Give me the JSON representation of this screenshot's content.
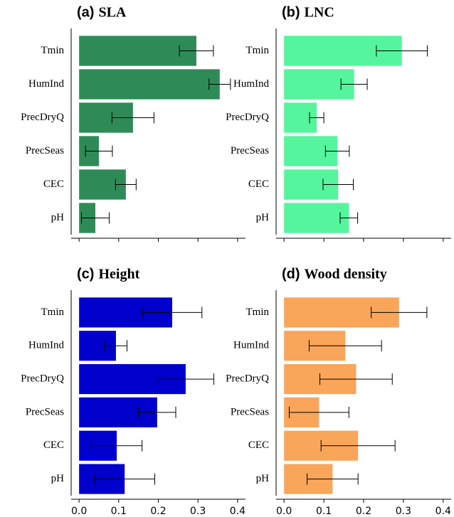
{
  "chart_data": [
    {
      "type": "bar",
      "orientation": "horizontal",
      "panel_label": "(a)",
      "title": "SLA",
      "categories": [
        "Tmin",
        "HumInd",
        "PrecDryQ",
        "PrecSeas",
        "CEC",
        "pH"
      ],
      "values": [
        0.296,
        0.355,
        0.136,
        0.05,
        0.118,
        0.041
      ],
      "errors": [
        0.043,
        0.027,
        0.053,
        0.034,
        0.026,
        0.035
      ],
      "color": "#2e8b57",
      "xlim": [
        -0.02,
        0.42
      ],
      "xticks": [
        0,
        0.1,
        0.2,
        0.3,
        0.4
      ],
      "show_xtick_labels": false
    },
    {
      "type": "bar",
      "orientation": "horizontal",
      "panel_label": "(b)",
      "title": "LNC",
      "categories": [
        "Tmin",
        "HumInd",
        "PrecDryQ",
        "PrecSeas",
        "CEC",
        "pH"
      ],
      "values": [
        0.296,
        0.176,
        0.082,
        0.134,
        0.136,
        0.163
      ],
      "errors": [
        0.064,
        0.033,
        0.018,
        0.03,
        0.038,
        0.022
      ],
      "color": "#54f59c",
      "xlim": [
        -0.02,
        0.42
      ],
      "xticks": [
        0,
        0.1,
        0.2,
        0.3,
        0.4
      ],
      "show_xtick_labels": false
    },
    {
      "type": "bar",
      "orientation": "horizontal",
      "panel_label": "(c)",
      "title": "Height",
      "categories": [
        "Tmin",
        "HumInd",
        "PrecDryQ",
        "PrecSeas",
        "CEC",
        "pH"
      ],
      "values": [
        0.235,
        0.093,
        0.269,
        0.197,
        0.095,
        0.115
      ],
      "errors": [
        0.075,
        0.028,
        0.071,
        0.047,
        0.064,
        0.076
      ],
      "color": "#0000cd",
      "xlim": [
        -0.02,
        0.42
      ],
      "xticks": [
        {
          "value": 0,
          "label": "0.0"
        },
        0.1,
        0.2,
        0.3,
        0.4
      ],
      "show_xtick_labels": true
    },
    {
      "type": "bar",
      "orientation": "horizontal",
      "panel_label": "(d)",
      "title": "Wood density",
      "categories": [
        "Tmin",
        "HumInd",
        "PrecDryQ",
        "PrecSeas",
        "CEC",
        "pH"
      ],
      "values": [
        0.289,
        0.154,
        0.181,
        0.088,
        0.186,
        0.122
      ],
      "errors": [
        0.07,
        0.091,
        0.091,
        0.075,
        0.093,
        0.064
      ],
      "color": "#f9a55a",
      "xlim": [
        -0.02,
        0.42
      ],
      "xticks": [
        {
          "value": 0,
          "label": "0.0"
        },
        0.1,
        0.2,
        0.3,
        0.4
      ],
      "show_xtick_labels": true
    }
  ]
}
